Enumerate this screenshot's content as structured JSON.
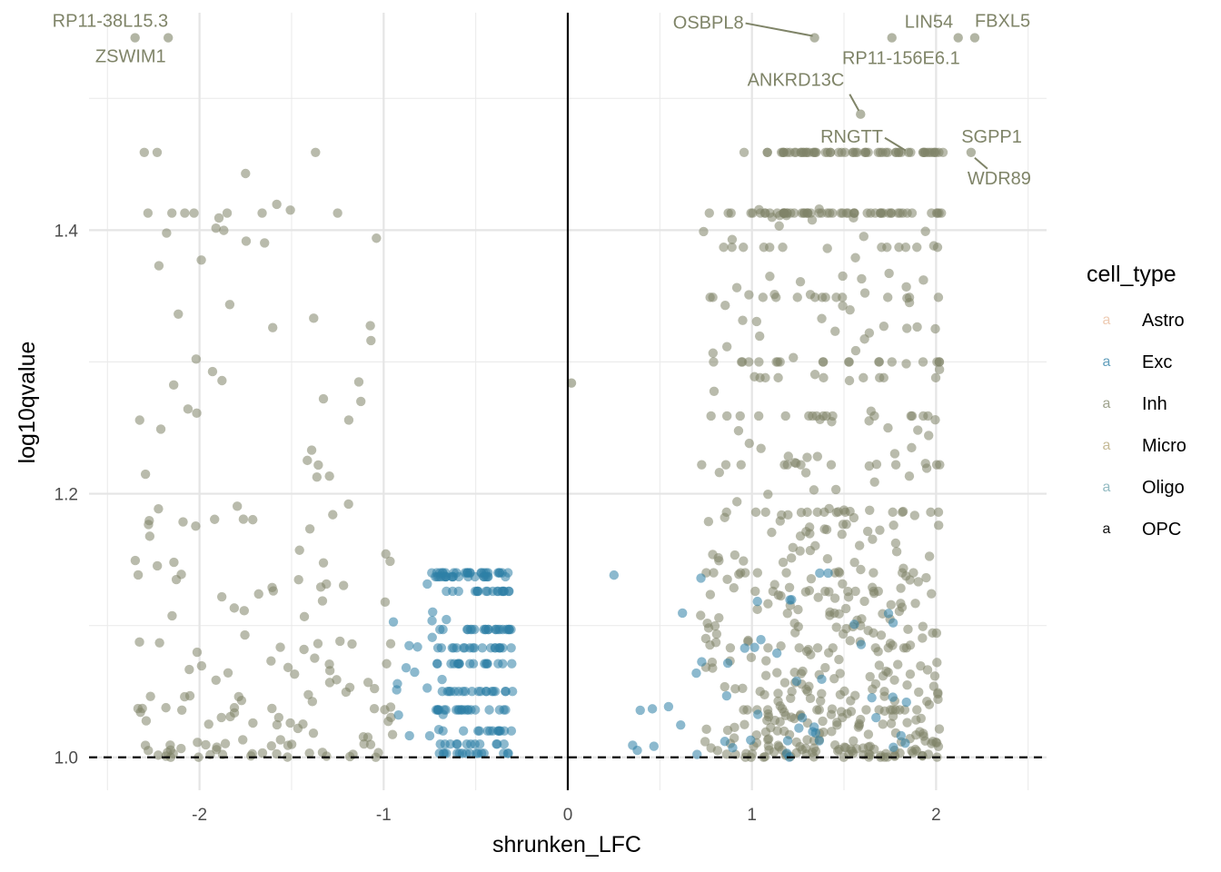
{
  "chart_data": {
    "type": "scatter",
    "title": "",
    "xlabel": "shrunken_LFC",
    "ylabel": "log10qvalue",
    "xlim": [
      -2.6,
      2.6
    ],
    "ylim": [
      0.975,
      1.565
    ],
    "x_ticks": [
      -2,
      -1,
      0,
      1,
      2
    ],
    "x_tick_labels": [
      "-2",
      "-1",
      "0",
      "1",
      "2"
    ],
    "x_minor_ticks": [
      -2.5,
      -1.5,
      -0.5,
      0.5,
      1.5,
      2.5
    ],
    "y_ticks": [
      1.0,
      1.2,
      1.4
    ],
    "y_tick_labels": [
      "1.0",
      "1.2",
      "1.4"
    ],
    "y_minor_ticks": [
      1.1,
      1.3,
      1.5
    ],
    "grid": true,
    "vline_x": 0,
    "hline_y": 1.0,
    "legend": {
      "title": "cell_type",
      "position": "right",
      "key_glyph": "a",
      "entries": [
        {
          "name": "Astro",
          "color": "#E8B99A"
        },
        {
          "name": "Exc",
          "color": "#2E7FA6"
        },
        {
          "name": "Inh",
          "color": "#7F8468"
        },
        {
          "name": "Micro",
          "color": "#B2A373"
        },
        {
          "name": "Oligo",
          "color": "#6FA4AE"
        },
        {
          "name": "OPC",
          "color": "#111111"
        }
      ]
    },
    "series": [
      {
        "name": "Inh",
        "color": "#7F8468",
        "opacity": 0.55,
        "cluster_note": "many points spread from x=-2.4..-1.0 and x=0.7..2.2, y=1.0..1.46"
      },
      {
        "name": "Exc",
        "color": "#2E7FA6",
        "opacity": 0.55,
        "cluster_note": "points x=-0.95..-0.3 and x=0.25..1.9, y=1.0..1.14"
      }
    ],
    "highlighted_points": [
      {
        "x": -2.35,
        "y": 1.546,
        "series": "Inh"
      },
      {
        "x": -2.17,
        "y": 1.546,
        "series": "Inh"
      },
      {
        "x": 1.34,
        "y": 1.546,
        "series": "Inh"
      },
      {
        "x": 1.76,
        "y": 1.546,
        "series": "Inh"
      },
      {
        "x": 2.12,
        "y": 1.546,
        "series": "Inh"
      },
      {
        "x": 2.21,
        "y": 1.546,
        "series": "Inh"
      },
      {
        "x": 1.59,
        "y": 1.488,
        "series": "Inh"
      },
      {
        "x": 1.85,
        "y": 1.459,
        "series": "Inh"
      },
      {
        "x": 2.19,
        "y": 1.459,
        "series": "Inh"
      },
      {
        "x": 0.02,
        "y": 1.284,
        "series": "Inh"
      }
    ],
    "annotations": [
      {
        "text": "RP11-38L15.3",
        "x": -2.17,
        "y": 1.546,
        "color": "#7F8468"
      },
      {
        "text": "ZSWIM1",
        "x": -2.35,
        "y": 1.546,
        "color": "#7F8468"
      },
      {
        "text": "OSBPL8",
        "x": 1.34,
        "y": 1.546,
        "color": "#7F8468"
      },
      {
        "text": "LIN54",
        "x": 1.76,
        "y": 1.546,
        "color": "#7F8468"
      },
      {
        "text": "FBXL5",
        "x": 2.21,
        "y": 1.546,
        "color": "#7F8468"
      },
      {
        "text": "RP11-156E6.1",
        "x": 2.12,
        "y": 1.546,
        "color": "#7F8468"
      },
      {
        "text": "ANKRD13C",
        "x": 1.59,
        "y": 1.488,
        "color": "#7F8468"
      },
      {
        "text": "RNGTT",
        "x": 1.85,
        "y": 1.459,
        "color": "#7F8468"
      },
      {
        "text": "SGPP1",
        "x": 2.19,
        "y": 1.459,
        "color": "#7F8468"
      },
      {
        "text": "WDR89",
        "x": 2.19,
        "y": 1.459,
        "color": "#7F8468"
      }
    ]
  }
}
